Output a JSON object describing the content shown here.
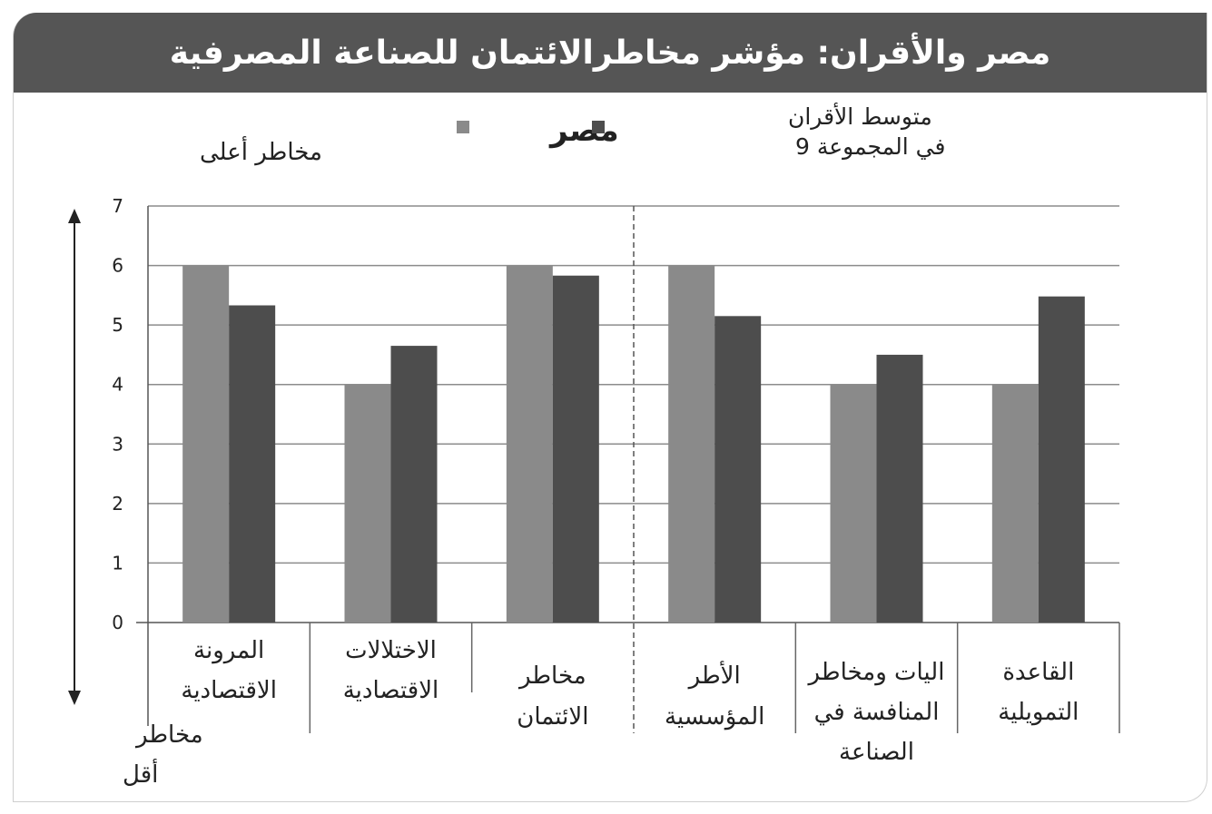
{
  "title": "مصر والأقران: مؤشر مخاطرالائتمان للصناعة المصرفية",
  "colors": {
    "title_bar": "#555555",
    "egypt": "#8a8a8a",
    "peers": "#4d4d4d"
  },
  "arrow_labels": {
    "top": "مخاطر أعلى",
    "bottom_line1": "مخاطر",
    "bottom_line2": "أقل"
  },
  "chart_data": {
    "type": "bar",
    "categories": [
      [
        "المرونة",
        "الاقتصادية"
      ],
      [
        "الاختلالات",
        "الاقتصادية"
      ],
      [
        "مخاطر",
        "الائتمان"
      ],
      [
        "الأطر",
        "المؤسسية"
      ],
      [
        "اليات ومخاطر",
        "المنافسة في",
        "الصناعة"
      ],
      [
        "القاعدة",
        "التمويلية"
      ]
    ],
    "series": [
      {
        "name": "مصر",
        "values": [
          6,
          4,
          6,
          6,
          4,
          4
        ]
      },
      {
        "name": "متوسط الأقران في المجموعة 9",
        "name_lines": [
          "متوسط الأقران",
          "في المجموعة 9"
        ],
        "values": [
          5.33,
          4.65,
          5.83,
          5.15,
          4.5,
          5.48
        ]
      }
    ],
    "ylim": [
      0,
      7
    ],
    "yticks": [
      0,
      1,
      2,
      3,
      4,
      5,
      6,
      7
    ],
    "grid": true,
    "legend": "top-center",
    "divider_after_category": 3
  }
}
